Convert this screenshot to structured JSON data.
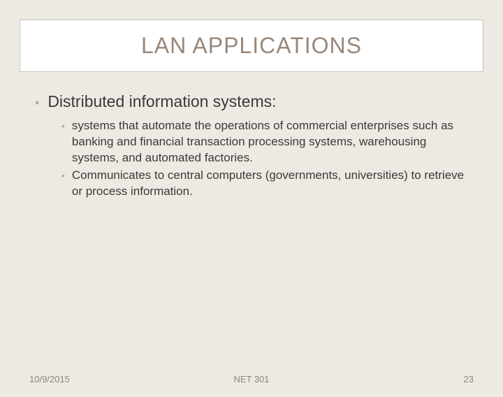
{
  "slide": {
    "title": "LAN APPLICATIONS",
    "title_color": "#9a877a",
    "title_fontsize": 32,
    "title_box_bg": "#ffffff",
    "title_box_border": "#c5c1b8",
    "background_color": "#edeae3",
    "body_color": "#3a3a38",
    "bullet_color": "#b8aa9d",
    "level1": {
      "text": "Distributed information systems:",
      "fontsize": 23
    },
    "level2": [
      "systems that automate the operations of commercial enterprises such as banking and financial transaction processing systems, warehousing systems, and automated factories.",
      "Communicates to central computers (governments, universities) to retrieve or process information."
    ],
    "level2_fontsize": 17
  },
  "footer": {
    "date": "10/9/2015",
    "course": "NET 301",
    "page": "23",
    "color": "#8c8678",
    "fontsize": 13
  }
}
